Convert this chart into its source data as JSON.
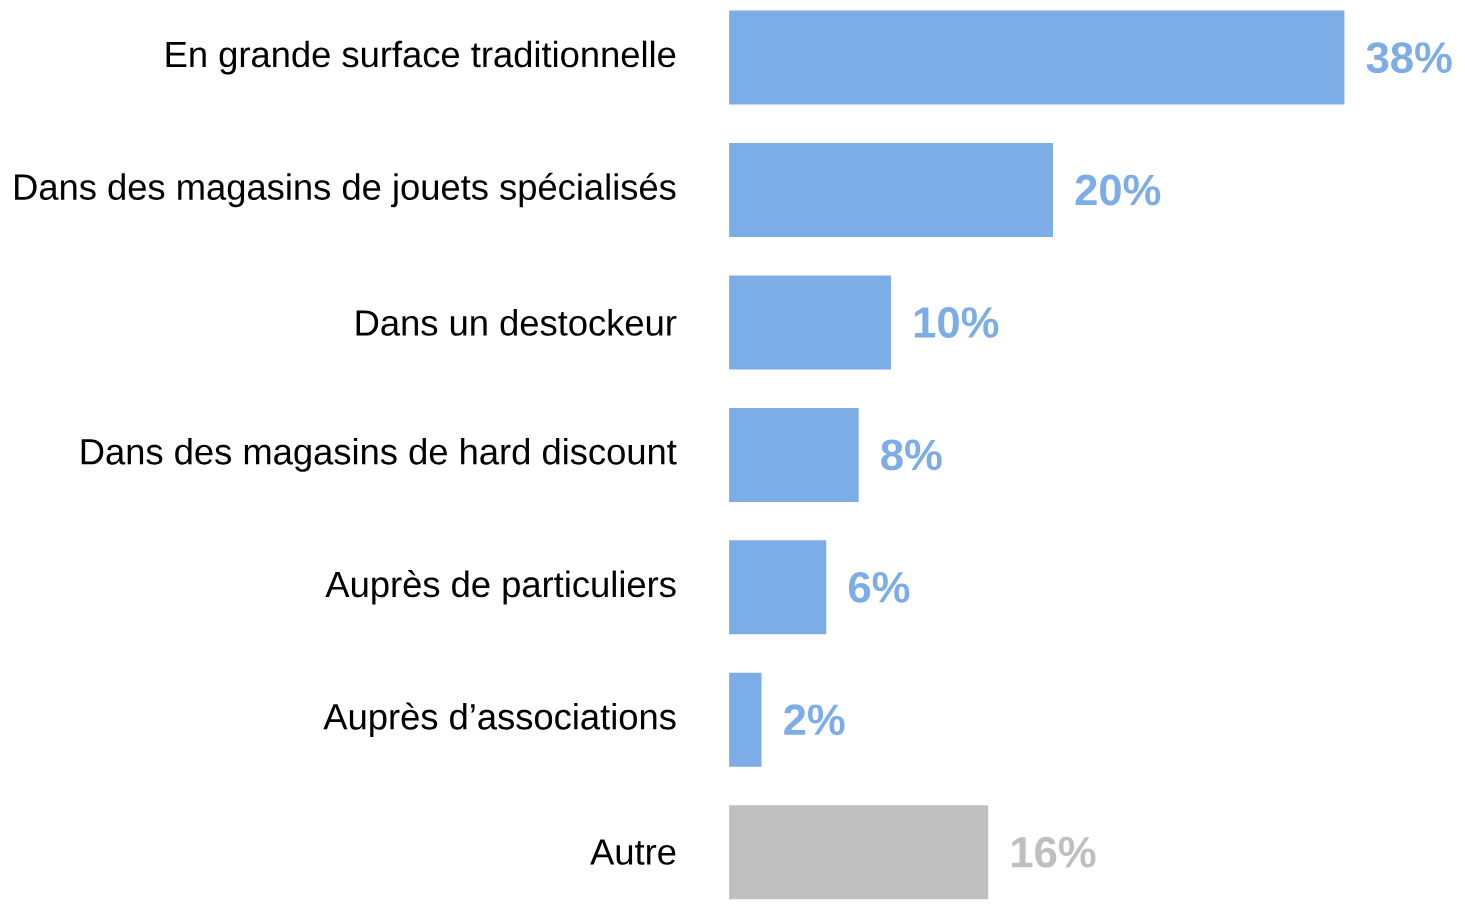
{
  "chart_data": {
    "type": "bar",
    "orientation": "horizontal",
    "categories": [
      "En grande surface traditionnelle",
      "Dans des magasins de jouets spécialisés",
      "Dans un destockeur",
      "Dans des magasins de hard discount",
      "Auprès de particuliers",
      "Auprès d’associations",
      "Autre"
    ],
    "values": [
      38,
      20,
      10,
      8,
      6,
      2,
      16
    ],
    "value_labels": [
      "38%",
      "20%",
      "10%",
      "8%",
      "6%",
      "2%",
      "16%"
    ],
    "colors": [
      "#7dade6",
      "#7dade6",
      "#7dade6",
      "#7dade6",
      "#7dade6",
      "#7dade6",
      "#bfbfbf"
    ],
    "data_labels": false
  }
}
